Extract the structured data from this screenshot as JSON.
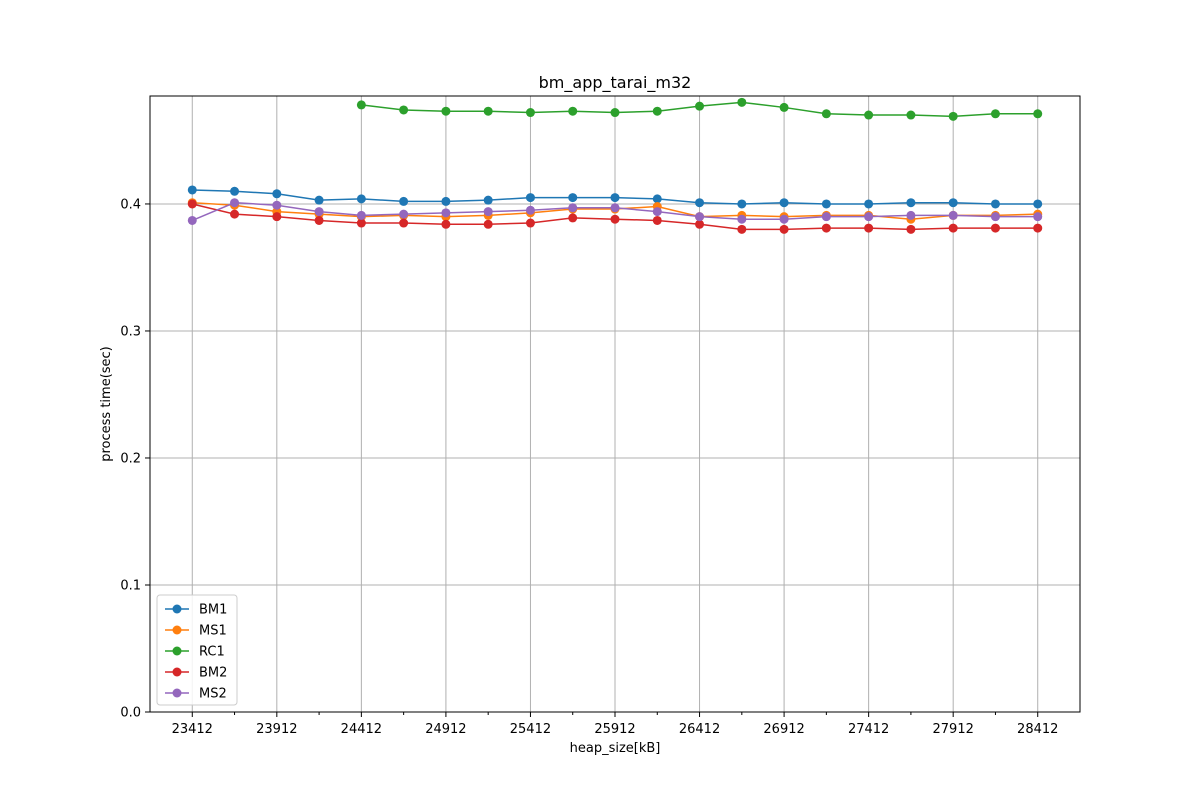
{
  "chart_data": {
    "type": "line",
    "title": "bm_app_tarai_m32",
    "xlabel": "heap_size[kB]",
    "ylabel": "process time(sec)",
    "x": [
      23412,
      23662,
      23912,
      24162,
      24412,
      24662,
      24912,
      25162,
      25412,
      25662,
      25912,
      26162,
      26412,
      26662,
      26912,
      27162,
      27412,
      27662,
      27912,
      28162,
      28412
    ],
    "x_ticks_labeled": [
      23412,
      23912,
      24412,
      24912,
      25412,
      25912,
      26412,
      26912,
      27412,
      27912,
      28412
    ],
    "y_ticks": [
      "0.0",
      "0.1",
      "0.2",
      "0.3",
      "0.4"
    ],
    "xlim": [
      23162,
      28662
    ],
    "ylim": [
      0.0,
      0.485
    ],
    "grid": true,
    "legend_position": "lower-left",
    "marker": "circle",
    "series": [
      {
        "name": "BM1",
        "color": "#1f77b4",
        "values": [
          0.411,
          0.41,
          0.408,
          0.403,
          0.404,
          0.402,
          0.402,
          0.403,
          0.405,
          0.405,
          0.405,
          0.404,
          0.401,
          0.4,
          0.401,
          0.4,
          0.4,
          0.401,
          0.401,
          0.4,
          0.4
        ]
      },
      {
        "name": "MS1",
        "color": "#ff7f0e",
        "values": [
          0.401,
          0.399,
          0.394,
          0.392,
          0.39,
          0.391,
          0.39,
          0.391,
          0.393,
          0.396,
          0.396,
          0.398,
          0.39,
          0.391,
          0.39,
          0.391,
          0.391,
          0.388,
          0.391,
          0.391,
          0.392
        ]
      },
      {
        "name": "RC1",
        "color": "#2ca02c",
        "values": [
          null,
          null,
          null,
          null,
          0.478,
          0.474,
          0.473,
          0.473,
          0.472,
          0.473,
          0.472,
          0.473,
          0.477,
          0.48,
          0.476,
          0.471,
          0.47,
          0.47,
          0.469,
          0.471,
          0.471
        ]
      },
      {
        "name": "BM2",
        "color": "#d62728",
        "values": [
          0.4,
          0.392,
          0.39,
          0.387,
          0.385,
          0.385,
          0.384,
          0.384,
          0.385,
          0.389,
          0.388,
          0.387,
          0.384,
          0.38,
          0.38,
          0.381,
          0.381,
          0.38,
          0.381,
          0.381,
          0.381
        ]
      },
      {
        "name": "MS2",
        "color": "#9467bd",
        "values": [
          0.387,
          0.401,
          0.399,
          0.394,
          0.391,
          0.392,
          0.393,
          0.394,
          0.395,
          0.397,
          0.397,
          0.394,
          0.39,
          0.388,
          0.388,
          0.39,
          0.39,
          0.391,
          0.391,
          0.39,
          0.39
        ]
      }
    ]
  }
}
